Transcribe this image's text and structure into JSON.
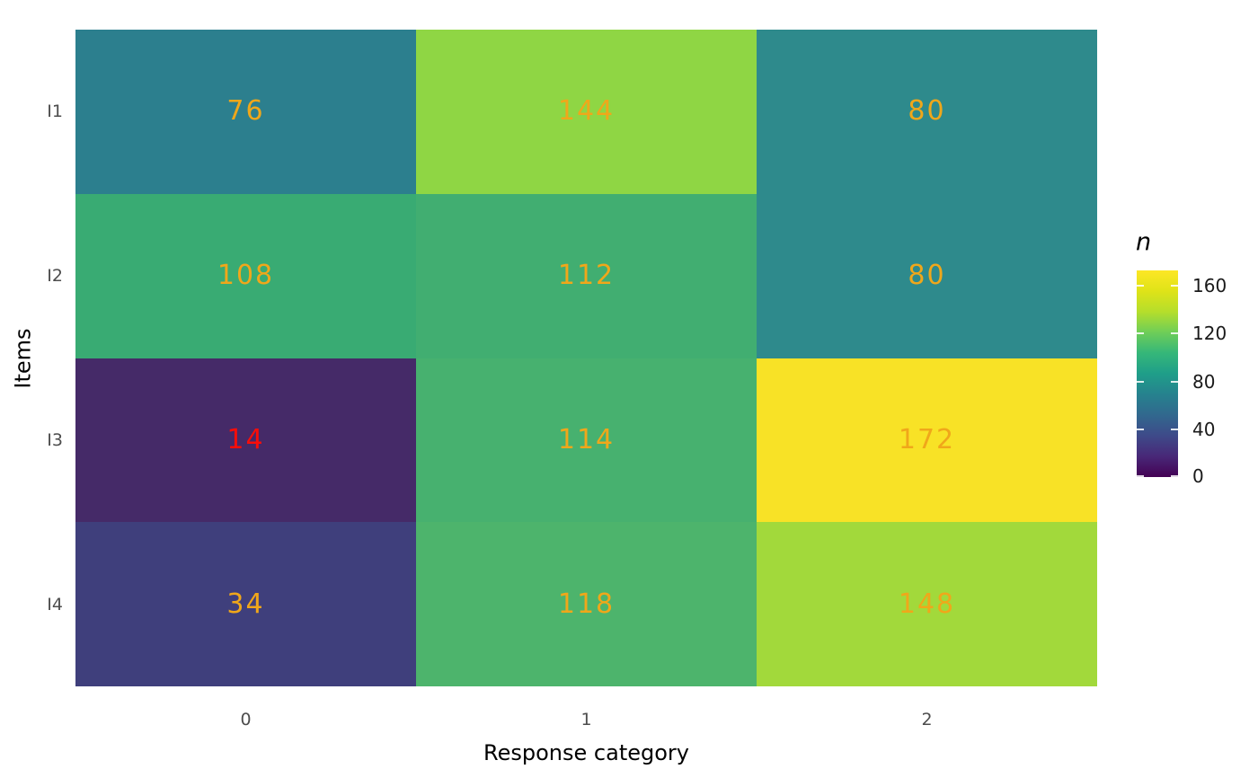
{
  "chart_data": {
    "type": "heatmap",
    "title": "",
    "xlabel": "Response category",
    "ylabel": "Items",
    "x_categories": [
      "0",
      "1",
      "2"
    ],
    "y_categories": [
      "I1",
      "I2",
      "I3",
      "I4"
    ],
    "values": [
      [
        76,
        144,
        80
      ],
      [
        108,
        112,
        80
      ],
      [
        14,
        114,
        172
      ],
      [
        34,
        118,
        148
      ]
    ],
    "cell_colors": [
      [
        "#2C7F8E",
        "#8FD644",
        "#2E8A8C"
      ],
      [
        "#39AB73",
        "#41AE71",
        "#2E8A8C"
      ],
      [
        "#452A68",
        "#47B16F",
        "#F8E226"
      ],
      [
        "#3F3F7C",
        "#4DB46C",
        "#A2D93B"
      ]
    ],
    "value_label_colors": [
      [
        "#F0A71A",
        "#F0A71A",
        "#F0A71A"
      ],
      [
        "#F0A71A",
        "#F0A71A",
        "#F0A71A"
      ],
      [
        "#F90D09",
        "#F0A71A",
        "#F0A71A"
      ],
      [
        "#F0A71A",
        "#F0A71A",
        "#F0A71A"
      ]
    ],
    "grid": "off",
    "legend": {
      "title": "n",
      "position": "right",
      "orientation": "vertical",
      "ticks": [
        0,
        40,
        80,
        120,
        160
      ],
      "range": [
        0,
        172.8
      ],
      "colormap": "viridis",
      "gradient_stops": [
        "#440154",
        "#482878",
        "#3E4A89",
        "#31688E",
        "#26828E",
        "#1F9E89",
        "#35B779",
        "#6ECE58",
        "#B5DE2B",
        "#DFE318",
        "#FDE725"
      ]
    },
    "colors": {
      "background": "#FFFFFF",
      "axis_text": "#4D4D4D",
      "axis_title": "#000000",
      "value_label_orange": "#F0A71A",
      "value_label_red": "#F90D09"
    }
  }
}
